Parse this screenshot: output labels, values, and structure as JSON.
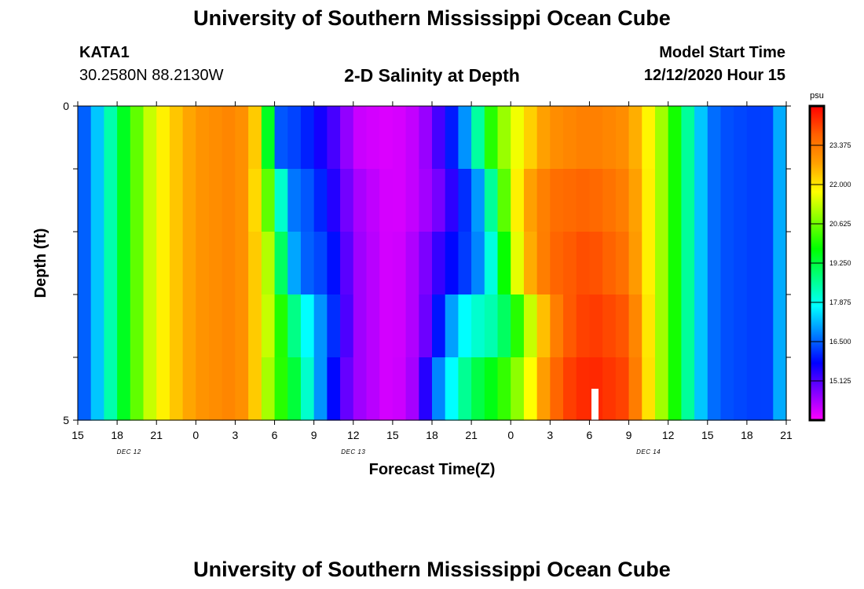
{
  "header": {
    "title": "University of Southern Mississippi Ocean Cube",
    "station_id": "KATA1",
    "station_location": "30.2580N 88.2130W",
    "chart_title": "2-D Salinity at Depth",
    "model_start_label": "Model Start Time",
    "model_start_value": "12/12/2020 Hour 15"
  },
  "footer": {
    "title": "University of Southern Mississippi Ocean Cube"
  },
  "chart_data": {
    "type": "heatmap",
    "title": "2-D Salinity at Depth",
    "xlabel": "Forecast Time(Z)",
    "ylabel": "Depth (ft)",
    "x_tick_labels": [
      "15",
      "18",
      "21",
      "0",
      "3",
      "6",
      "9",
      "12",
      "15",
      "18",
      "21",
      "0",
      "3",
      "6",
      "9",
      "12",
      "15",
      "18",
      "21"
    ],
    "date_labels": [
      {
        "label": "DEC 12",
        "tick_index": 1.3
      },
      {
        "label": "DEC 13",
        "tick_index": 7
      },
      {
        "label": "DEC 14",
        "tick_index": 14.5
      }
    ],
    "y_ticks": [
      "0",
      "",
      "",
      "",
      "",
      "5"
    ],
    "depth_layers": 5,
    "x_hours": 54,
    "x_start_hour": 15,
    "colorbar": {
      "unit": "psu",
      "min": 13.75,
      "max": 24.75,
      "tick_values": [
        15.125,
        16.5,
        17.875,
        19.25,
        20.625,
        22.0,
        23.375
      ],
      "tick_labels": [
        "15.125",
        "16.500",
        "17.875",
        "19.250",
        "20.625",
        "22.000",
        "23.375"
      ],
      "colors": [
        "#ff00ff",
        "#8000ff",
        "#0000ff",
        "#0080ff",
        "#00ffff",
        "#00ff80",
        "#00ff00",
        "#80ff00",
        "#ffff00",
        "#ffa000",
        "#ff6000",
        "#ff0000"
      ]
    },
    "keyframes": [
      [
        [
          15,
          16.2
        ],
        [
          16,
          16.8
        ],
        [
          17,
          17.8
        ],
        [
          18,
          19.0
        ],
        [
          19,
          20.0
        ],
        [
          20,
          21.0
        ],
        [
          21,
          21.6
        ],
        [
          22,
          22.2
        ],
        [
          23,
          22.5
        ],
        [
          0,
          22.9
        ],
        [
          3,
          23.2
        ],
        [
          4,
          22.8
        ],
        [
          5,
          21.8
        ],
        [
          5.5,
          19.5
        ],
        [
          6,
          16.5
        ],
        [
          8,
          16.2
        ],
        [
          11,
          15.0
        ],
        [
          12,
          14.2
        ],
        [
          15,
          14.0
        ],
        [
          17,
          14.3
        ],
        [
          18,
          14.8
        ],
        [
          19,
          15.6
        ],
        [
          20,
          16.3
        ],
        [
          21,
          17.5
        ],
        [
          22,
          19.5
        ],
        [
          23,
          20.6
        ],
        [
          0,
          21.3
        ],
        [
          1,
          22.0
        ],
        [
          3,
          23.0
        ],
        [
          6,
          23.3
        ],
        [
          9,
          23.0
        ],
        [
          10,
          22.2
        ],
        [
          11,
          21.5
        ],
        [
          12,
          20.5
        ],
        [
          13,
          19.3
        ],
        [
          14,
          17.8
        ],
        [
          15,
          16.8
        ],
        [
          16,
          16.4
        ],
        [
          19,
          16.2
        ],
        [
          20,
          16.3
        ],
        [
          21,
          17.9
        ]
      ],
      [
        [
          15,
          16.2
        ],
        [
          16,
          16.8
        ],
        [
          17,
          17.8
        ],
        [
          18,
          19.0
        ],
        [
          19,
          20.0
        ],
        [
          20,
          21.0
        ],
        [
          21,
          21.6
        ],
        [
          22,
          22.2
        ],
        [
          23,
          22.5
        ],
        [
          0,
          22.9
        ],
        [
          3,
          23.2
        ],
        [
          4,
          22.8
        ],
        [
          5,
          21.5
        ],
        [
          6,
          19.5
        ],
        [
          7,
          16.8
        ],
        [
          9,
          16.3
        ],
        [
          11,
          15.2
        ],
        [
          12,
          14.5
        ],
        [
          15,
          14.0
        ],
        [
          17,
          14.3
        ],
        [
          19,
          15.0
        ],
        [
          20,
          15.8
        ],
        [
          21,
          16.4
        ],
        [
          22,
          17.5
        ],
        [
          23,
          19.6
        ],
        [
          0,
          21.3
        ],
        [
          1,
          22.5
        ],
        [
          3,
          23.5
        ],
        [
          6,
          23.7
        ],
        [
          9,
          23.2
        ],
        [
          10,
          22.3
        ],
        [
          11,
          21.5
        ],
        [
          12,
          20.5
        ],
        [
          13,
          19.3
        ],
        [
          14,
          17.8
        ],
        [
          15,
          16.8
        ],
        [
          16,
          16.4
        ],
        [
          19,
          16.2
        ],
        [
          20,
          16.3
        ],
        [
          21,
          17.9
        ]
      ],
      [
        [
          15,
          16.2
        ],
        [
          16,
          16.8
        ],
        [
          17,
          17.8
        ],
        [
          18,
          19.0
        ],
        [
          19,
          20.0
        ],
        [
          20,
          21.0
        ],
        [
          21,
          21.6
        ],
        [
          22,
          22.2
        ],
        [
          23,
          22.5
        ],
        [
          0,
          22.9
        ],
        [
          3,
          23.2
        ],
        [
          4,
          22.8
        ],
        [
          5,
          21.8
        ],
        [
          6,
          20.5
        ],
        [
          7,
          17.5
        ],
        [
          8,
          16.6
        ],
        [
          10,
          16.2
        ],
        [
          11,
          15.5
        ],
        [
          12,
          14.6
        ],
        [
          15,
          14.0
        ],
        [
          17,
          14.5
        ],
        [
          19,
          15.6
        ],
        [
          21,
          16.4
        ],
        [
          22,
          17.2
        ],
        [
          23,
          18.8
        ],
        [
          0,
          20.8
        ],
        [
          1,
          22.3
        ],
        [
          3,
          23.6
        ],
        [
          6,
          24.0
        ],
        [
          9,
          23.4
        ],
        [
          10,
          22.3
        ],
        [
          11,
          21.5
        ],
        [
          12,
          20.5
        ],
        [
          13,
          19.3
        ],
        [
          14,
          17.8
        ],
        [
          15,
          16.8
        ],
        [
          16,
          16.4
        ],
        [
          19,
          16.2
        ],
        [
          20,
          16.3
        ],
        [
          21,
          17.9
        ]
      ],
      [
        [
          15,
          16.2
        ],
        [
          16,
          16.8
        ],
        [
          17,
          17.8
        ],
        [
          18,
          19.0
        ],
        [
          19,
          20.0
        ],
        [
          20,
          21.0
        ],
        [
          21,
          21.6
        ],
        [
          22,
          22.2
        ],
        [
          23,
          22.5
        ],
        [
          0,
          22.9
        ],
        [
          3,
          23.2
        ],
        [
          4,
          22.8
        ],
        [
          5,
          21.8
        ],
        [
          6,
          20.8
        ],
        [
          7,
          19.2
        ],
        [
          8,
          18.2
        ],
        [
          9,
          17.3
        ],
        [
          10,
          16.5
        ],
        [
          11,
          15.7
        ],
        [
          12,
          14.6
        ],
        [
          15,
          14.0
        ],
        [
          17,
          14.5
        ],
        [
          18,
          15.3
        ],
        [
          19,
          16.5
        ],
        [
          20,
          17.5
        ],
        [
          21,
          18.0
        ],
        [
          23,
          18.5
        ],
        [
          0,
          19.5
        ],
        [
          1,
          20.6
        ],
        [
          2,
          22.0
        ],
        [
          4,
          23.7
        ],
        [
          6,
          24.2
        ],
        [
          9,
          23.8
        ],
        [
          10,
          22.5
        ],
        [
          11,
          21.5
        ],
        [
          12,
          20.5
        ],
        [
          13,
          19.3
        ],
        [
          14,
          17.8
        ],
        [
          15,
          16.8
        ],
        [
          16,
          16.4
        ],
        [
          19,
          16.2
        ],
        [
          20,
          16.3
        ],
        [
          21,
          17.9
        ]
      ],
      [
        [
          15,
          16.2
        ],
        [
          16,
          16.8
        ],
        [
          17,
          17.8
        ],
        [
          18,
          19.0
        ],
        [
          19,
          20.0
        ],
        [
          20,
          21.0
        ],
        [
          21,
          21.6
        ],
        [
          22,
          22.2
        ],
        [
          23,
          22.5
        ],
        [
          0,
          22.9
        ],
        [
          3,
          23.2
        ],
        [
          4,
          22.8
        ],
        [
          5,
          21.8
        ],
        [
          6,
          20.3
        ],
        [
          7,
          19.8
        ],
        [
          8,
          18.8
        ],
        [
          9,
          17.5
        ],
        [
          10,
          16.3
        ],
        [
          11,
          15.3
        ],
        [
          12,
          14.6
        ],
        [
          15,
          14.0
        ],
        [
          17,
          14.6
        ],
        [
          18,
          16.3
        ],
        [
          19,
          17.3
        ],
        [
          20,
          18.2
        ],
        [
          21,
          19.0
        ],
        [
          23,
          19.8
        ],
        [
          0,
          20.5
        ],
        [
          1,
          21.2
        ],
        [
          2,
          22.3
        ],
        [
          3,
          23.3
        ],
        [
          4,
          24.0
        ],
        [
          6,
          24.4
        ],
        [
          9,
          24.0
        ],
        [
          10,
          22.6
        ],
        [
          11,
          21.5
        ],
        [
          12,
          20.5
        ],
        [
          13,
          19.3
        ],
        [
          14,
          17.8
        ],
        [
          15,
          16.8
        ],
        [
          16,
          16.4
        ],
        [
          19,
          16.2
        ],
        [
          20,
          16.3
        ],
        [
          21,
          17.9
        ]
      ]
    ]
  }
}
